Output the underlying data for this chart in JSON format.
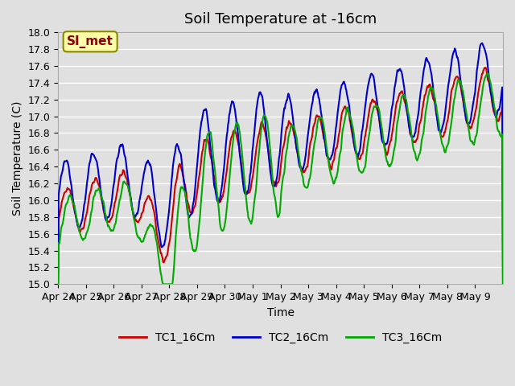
{
  "title": "Soil Temperature at -16cm",
  "xlabel": "Time",
  "ylabel": "Soil Temperature (C)",
  "ylim": [
    15.0,
    18.0
  ],
  "yticks": [
    15.0,
    15.2,
    15.4,
    15.6,
    15.8,
    16.0,
    16.2,
    16.4,
    16.6,
    16.8,
    17.0,
    17.2,
    17.4,
    17.6,
    17.8,
    18.0
  ],
  "xtick_labels": [
    "Apr 24",
    "Apr 25",
    "Apr 26",
    "Apr 27",
    "Apr 28",
    "Apr 29",
    "Apr 30",
    "May 1",
    "May 2",
    "May 3",
    "May 4",
    "May 5",
    "May 6",
    "May 7",
    "May 8",
    "May 9"
  ],
  "line_colors": [
    "#cc0000",
    "#0000cc",
    "#00aa00"
  ],
  "line_width": 1.5,
  "series_names": [
    "TC1_16Cm",
    "TC2_16Cm",
    "TC3_16Cm"
  ],
  "plot_bg_color": "#e0e0e0",
  "grid_color": "#ffffff",
  "annotation_text": "SI_met",
  "annotation_bg": "#ffffaa",
  "annotation_border": "#888800",
  "title_fontsize": 13,
  "axis_fontsize": 10,
  "tick_fontsize": 9,
  "legend_fontsize": 10
}
